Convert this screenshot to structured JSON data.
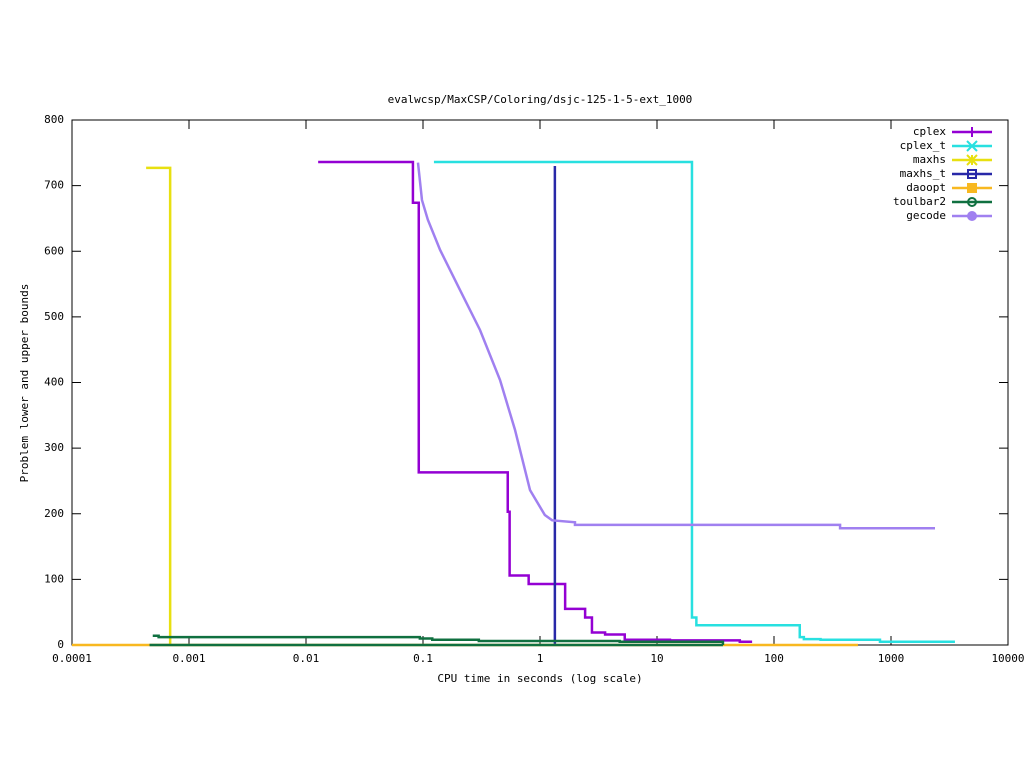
{
  "chart_data": {
    "type": "line",
    "title": "evalwcsp/MaxCSP/Coloring/dsjc-125-1-5-ext_1000",
    "x_label": "CPU time in seconds (log scale)",
    "y_label": "Problem lower and upper bounds",
    "x_log": true,
    "xlim": [
      0.0001,
      10000
    ],
    "xticks": [
      0.0001,
      0.001,
      0.01,
      0.1,
      1,
      10,
      100,
      1000,
      10000
    ],
    "ylim": [
      0,
      800
    ],
    "yticks": [
      0,
      100,
      200,
      300,
      400,
      500,
      600,
      700,
      800
    ],
    "legend": "top-right",
    "series": [
      {
        "name": "cplex",
        "color": "#9400d3",
        "marker": "plus",
        "x": [
          0.0127,
          0.082,
          0.082,
          0.092,
          0.092,
          0.53,
          0.53,
          0.55,
          0.55,
          0.8,
          0.8,
          1.64,
          1.64,
          2.43,
          2.43,
          2.78,
          2.78,
          3.6,
          3.6,
          5.3,
          5.3,
          12.9,
          12.9,
          51,
          51,
          65
        ],
        "values": [
          736,
          736,
          674,
          674,
          263,
          263,
          203,
          203,
          106,
          106,
          93,
          93,
          55,
          55,
          42,
          42,
          19,
          19,
          16,
          16,
          8,
          8,
          7,
          7,
          5,
          5
        ]
      },
      {
        "name": "cplex_t",
        "color": "#28e0e0",
        "marker": "cross",
        "x": [
          0.124,
          19.9,
          19.9,
          21.7,
          21.7,
          166,
          166,
          180,
          180,
          250,
          250,
          805,
          805,
          3520
        ],
        "values": [
          736,
          736,
          42,
          42,
          30,
          30,
          12,
          12,
          9,
          9,
          8,
          8,
          5,
          5
        ]
      },
      {
        "name": "maxhs",
        "color": "#e8e010",
        "marker": "star",
        "x": [
          0.00043,
          0.00069,
          0.00069
        ],
        "values": [
          727,
          727,
          0
        ]
      },
      {
        "name": "maxhs_t",
        "color": "#2828a8",
        "marker": "square",
        "x": [
          1.34,
          1.34
        ],
        "values": [
          730,
          0
        ]
      },
      {
        "name": "daoopt",
        "color": "#f8b820",
        "marker": "filled-square",
        "x": [
          0.0001,
          0.67,
          522
        ],
        "values": [
          0,
          0,
          0
        ]
      },
      {
        "name": "toulbar2",
        "color": "#107040",
        "marker": "circle",
        "x": [
          0.00049,
          0.00055,
          0.00055,
          0.094,
          0.094,
          0.12,
          0.12,
          0.3,
          0.3,
          4.8,
          4.8,
          36.6,
          36.6,
          36.6,
          0.00046,
          36.6
        ],
        "values": [
          14,
          14,
          12,
          12,
          10,
          10,
          8,
          8,
          6,
          6,
          5,
          5,
          0,
          null,
          0,
          0
        ]
      },
      {
        "name": "gecode",
        "color": "#a080f0",
        "marker": "filled-circle",
        "x": [
          0.0906,
          0.098,
          0.11,
          0.14,
          0.207,
          0.307,
          0.455,
          0.611,
          0.822,
          1.1,
          1.27,
          1.99,
          1.99,
          367,
          367,
          2377
        ],
        "values": [
          735,
          678,
          648,
          602,
          541,
          480,
          404,
          328,
          236,
          198,
          190,
          187,
          183,
          183,
          178,
          178
        ]
      }
    ]
  }
}
